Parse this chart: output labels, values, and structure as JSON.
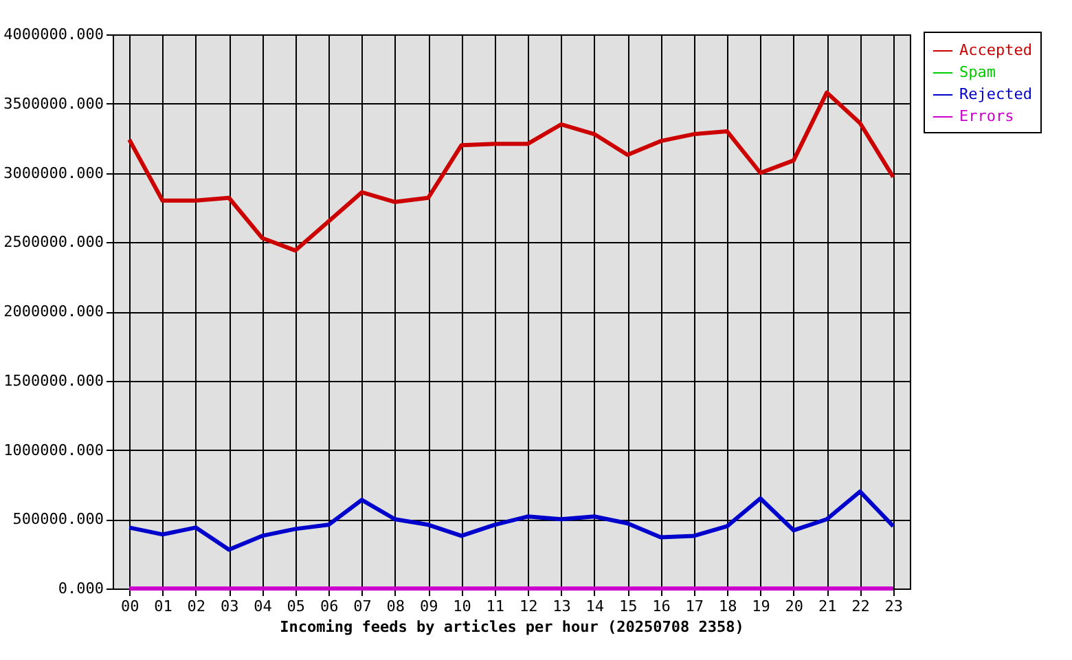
{
  "chart_data": {
    "type": "line",
    "xlabel": "Incoming feeds by articles per hour (20250708 2358)",
    "categories": [
      "00",
      "01",
      "02",
      "03",
      "04",
      "05",
      "06",
      "07",
      "08",
      "09",
      "10",
      "11",
      "12",
      "13",
      "14",
      "15",
      "16",
      "17",
      "18",
      "19",
      "20",
      "21",
      "22",
      "23"
    ],
    "series": [
      {
        "name": "Accepted",
        "color": "#cc0000",
        "values": [
          3240000,
          2800000,
          2800000,
          2820000,
          2530000,
          2440000,
          2650000,
          2860000,
          2790000,
          2820000,
          3200000,
          3210000,
          3210000,
          3350000,
          3280000,
          3130000,
          3230000,
          3280000,
          3300000,
          3000000,
          3090000,
          3580000,
          3360000,
          2970000
        ]
      },
      {
        "name": "Spam",
        "color": "#00cc00",
        "values": [
          null,
          null,
          null,
          null,
          null,
          null,
          null,
          null,
          null,
          null,
          null,
          null,
          null,
          null,
          null,
          null,
          null,
          null,
          null,
          null,
          null,
          null,
          null,
          null
        ]
      },
      {
        "name": "Rejected",
        "color": "#0000cc",
        "values": [
          440000,
          390000,
          440000,
          280000,
          380000,
          430000,
          460000,
          640000,
          500000,
          460000,
          380000,
          460000,
          520000,
          500000,
          520000,
          470000,
          370000,
          380000,
          450000,
          650000,
          420000,
          500000,
          700000,
          450000
        ]
      },
      {
        "name": "Errors",
        "color": "#cc00cc",
        "values": [
          0,
          0,
          0,
          0,
          0,
          0,
          0,
          0,
          0,
          0,
          0,
          0,
          0,
          0,
          0,
          0,
          0,
          0,
          0,
          0,
          0,
          0,
          0,
          0
        ]
      }
    ],
    "ylim": [
      0,
      4000000
    ],
    "yticks": [
      {
        "value": 0,
        "label": "0.000"
      },
      {
        "value": 500000,
        "label": "500000.000"
      },
      {
        "value": 1000000,
        "label": "1000000.000"
      },
      {
        "value": 1500000,
        "label": "1500000.000"
      },
      {
        "value": 2000000,
        "label": "2000000.000"
      },
      {
        "value": 2500000,
        "label": "2500000.000"
      },
      {
        "value": 3000000,
        "label": "3000000.000"
      },
      {
        "value": 3500000,
        "label": "3500000.000"
      },
      {
        "value": 4000000,
        "label": "4000000.000"
      }
    ],
    "grid": true,
    "legend": "top right",
    "marker": "none",
    "line_style": "solid"
  }
}
